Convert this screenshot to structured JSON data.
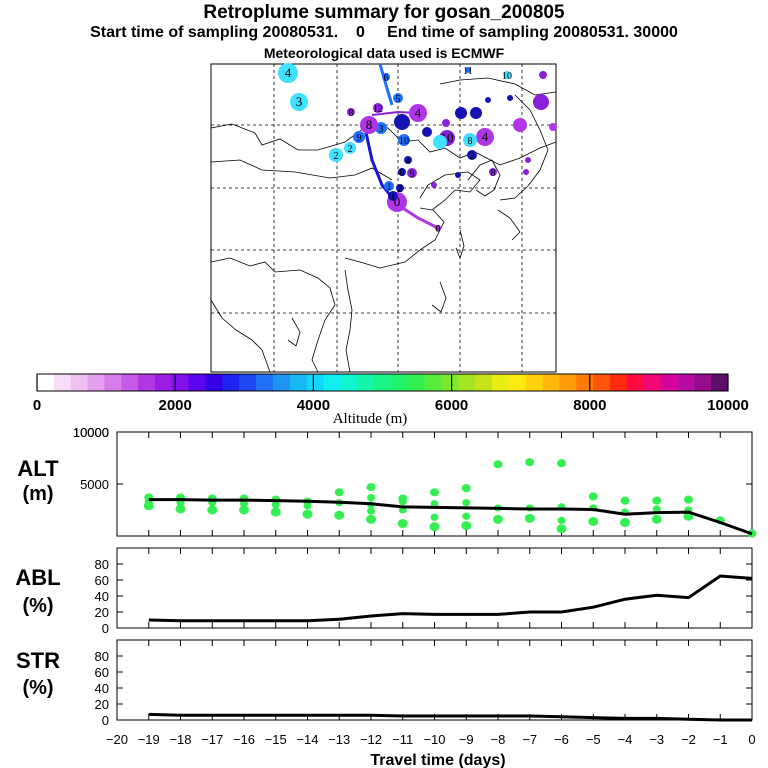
{
  "header": {
    "title": "Retroplume summary for gosan_200805",
    "start_label": "Start time of sampling 20080531.    0",
    "end_label": "End time of sampling 20080531. 30000",
    "met_label": "Meteorological data used is ECMWF"
  },
  "colorbar": {
    "label": "Altitude (m)",
    "tick_labels": [
      "0",
      "2000",
      "4000",
      "6000",
      "8000",
      "10000"
    ],
    "colors": [
      "#ffffff",
      "#f7ddf7",
      "#efc0f2",
      "#e5a0ef",
      "#d77ce9",
      "#c659e6",
      "#b336e3",
      "#9c1ce6",
      "#7e10ea",
      "#5d05ee",
      "#3500e8",
      "#1d24ef",
      "#1f48f2",
      "#1f70f4",
      "#1e93f5",
      "#19b6f6",
      "#14d6f8",
      "#11eef0",
      "#10f5cd",
      "#13f5a8",
      "#18f488",
      "#20f26a",
      "#33ef50",
      "#55ec3b",
      "#7ce82d",
      "#a3e522",
      "#c8e31a",
      "#eaec14",
      "#ffe90f",
      "#ffd20c",
      "#ffb80a",
      "#ff9a08",
      "#ff7a07",
      "#ff5507",
      "#ff2a10",
      "#ff0b3f",
      "#f00876",
      "#d6059a",
      "#b80ba4",
      "#930d8c",
      "#5c0f6a"
    ]
  },
  "map": {
    "marker_labels": [
      "4",
      "3",
      "2",
      "6",
      "5",
      "4",
      "12",
      "10",
      "11",
      "8",
      "9",
      "0",
      "1"
    ],
    "colors": {
      "low": "#40e0ff",
      "mid": "#1e70ff",
      "dark": "#1414b4",
      "purple": "#b035e6",
      "violet": "#8a20dc"
    }
  },
  "chart_data": [
    {
      "type": "line",
      "panel": "ALT",
      "ylabel": "ALT (m)",
      "ylim": [
        0,
        10000
      ],
      "y_ticks": [
        0,
        5000,
        10000
      ],
      "y_tick_labels": [
        "",
        "5000",
        "10000"
      ],
      "x": [
        -19,
        -18,
        -17,
        -16,
        -15,
        -14,
        -13,
        -12,
        -11,
        -10,
        -9,
        -8,
        -7,
        -6,
        -5,
        -4,
        -3,
        -2,
        -1,
        0
      ],
      "series": [
        {
          "name": "mean altitude",
          "values": [
            3500,
            3500,
            3450,
            3450,
            3400,
            3350,
            3250,
            3100,
            2800,
            2750,
            2700,
            2650,
            2600,
            2600,
            2550,
            2100,
            2250,
            2300,
            1300,
            200
          ]
        }
      ],
      "scatter": {
        "color": "#33ef50",
        "points": [
          {
            "x": -19,
            "values": [
              3700,
              3300,
              2900
            ]
          },
          {
            "x": -18,
            "values": [
              3700,
              3200,
              2600
            ]
          },
          {
            "x": -17,
            "values": [
              3600,
              3200,
              2500
            ]
          },
          {
            "x": -16,
            "values": [
              3600,
              3100,
              2500
            ]
          },
          {
            "x": -15,
            "values": [
              3500,
              3000,
              2300
            ]
          },
          {
            "x": -14,
            "values": [
              3300,
              2900,
              2100
            ]
          },
          {
            "x": -13,
            "values": [
              4200,
              3200,
              2000
            ]
          },
          {
            "x": -12,
            "values": [
              4700,
              3700,
              3000,
              2400,
              1600
            ]
          },
          {
            "x": -11,
            "values": [
              3600,
              3300,
              2500,
              1200
            ]
          },
          {
            "x": -10,
            "values": [
              4200,
              3100,
              1800,
              900
            ]
          },
          {
            "x": -9,
            "values": [
              4600,
              3200,
              1900,
              1000
            ]
          },
          {
            "x": -8,
            "values": [
              6900,
              2700,
              1600
            ]
          },
          {
            "x": -7,
            "values": [
              7100,
              2700,
              1700
            ]
          },
          {
            "x": -6,
            "values": [
              7000,
              2800,
              1500,
              700
            ]
          },
          {
            "x": -5,
            "values": [
              3800,
              2700,
              1400
            ]
          },
          {
            "x": -4,
            "values": [
              3400,
              2300,
              1300
            ]
          },
          {
            "x": -3,
            "values": [
              3400,
              2600,
              1600
            ]
          },
          {
            "x": -2,
            "values": [
              3500,
              2500,
              1900
            ]
          },
          {
            "x": -1,
            "values": [
              1500
            ]
          },
          {
            "x": 0,
            "values": [
              250
            ]
          }
        ]
      }
    },
    {
      "type": "line",
      "panel": "ABL",
      "ylabel": "ABL (%)",
      "ylim": [
        0,
        100
      ],
      "y_ticks": [
        0,
        20,
        40,
        60,
        80
      ],
      "y_tick_labels": [
        "0",
        "20",
        "40",
        "60",
        "80"
      ],
      "x": [
        -19,
        -18,
        -17,
        -16,
        -15,
        -14,
        -13,
        -12,
        -11,
        -10,
        -9,
        -8,
        -7,
        -6,
        -5,
        -4,
        -3,
        -2,
        -1,
        0
      ],
      "series": [
        {
          "name": "ABL fraction",
          "values": [
            10,
            9,
            9,
            9,
            9,
            9,
            11,
            15,
            18,
            17,
            17,
            17,
            20,
            20,
            26,
            36,
            41,
            38,
            65,
            62
          ]
        }
      ]
    },
    {
      "type": "line",
      "panel": "STR",
      "ylabel": "STR (%)",
      "ylim": [
        0,
        100
      ],
      "y_ticks": [
        0,
        20,
        40,
        60,
        80
      ],
      "y_tick_labels": [
        "0",
        "20",
        "40",
        "60",
        "80"
      ],
      "x": [
        -19,
        -18,
        -17,
        -16,
        -15,
        -14,
        -13,
        -12,
        -11,
        -10,
        -9,
        -8,
        -7,
        -6,
        -5,
        -4,
        -3,
        -2,
        -1,
        0
      ],
      "series": [
        {
          "name": "STR fraction",
          "values": [
            7,
            6,
            6,
            6,
            6,
            6,
            6,
            6,
            5,
            5,
            5,
            5,
            5,
            4,
            3,
            2,
            2,
            1,
            0,
            0
          ]
        }
      ]
    }
  ],
  "xaxis": {
    "label": "Travel time (days)",
    "ticks": [
      -20,
      -19,
      -18,
      -17,
      -16,
      -15,
      -14,
      -13,
      -12,
      -11,
      -10,
      -9,
      -8,
      -7,
      -6,
      -5,
      -4,
      -3,
      -2,
      -1,
      0
    ],
    "tick_labels": [
      "−20",
      "−19",
      "−18",
      "−17",
      "−16",
      "−15",
      "−14",
      "−13",
      "−12",
      "−11",
      "−10",
      "−9",
      "−8",
      "−7",
      "−6",
      "−5",
      "−4",
      "−3",
      "−2",
      "−1",
      "0"
    ]
  }
}
